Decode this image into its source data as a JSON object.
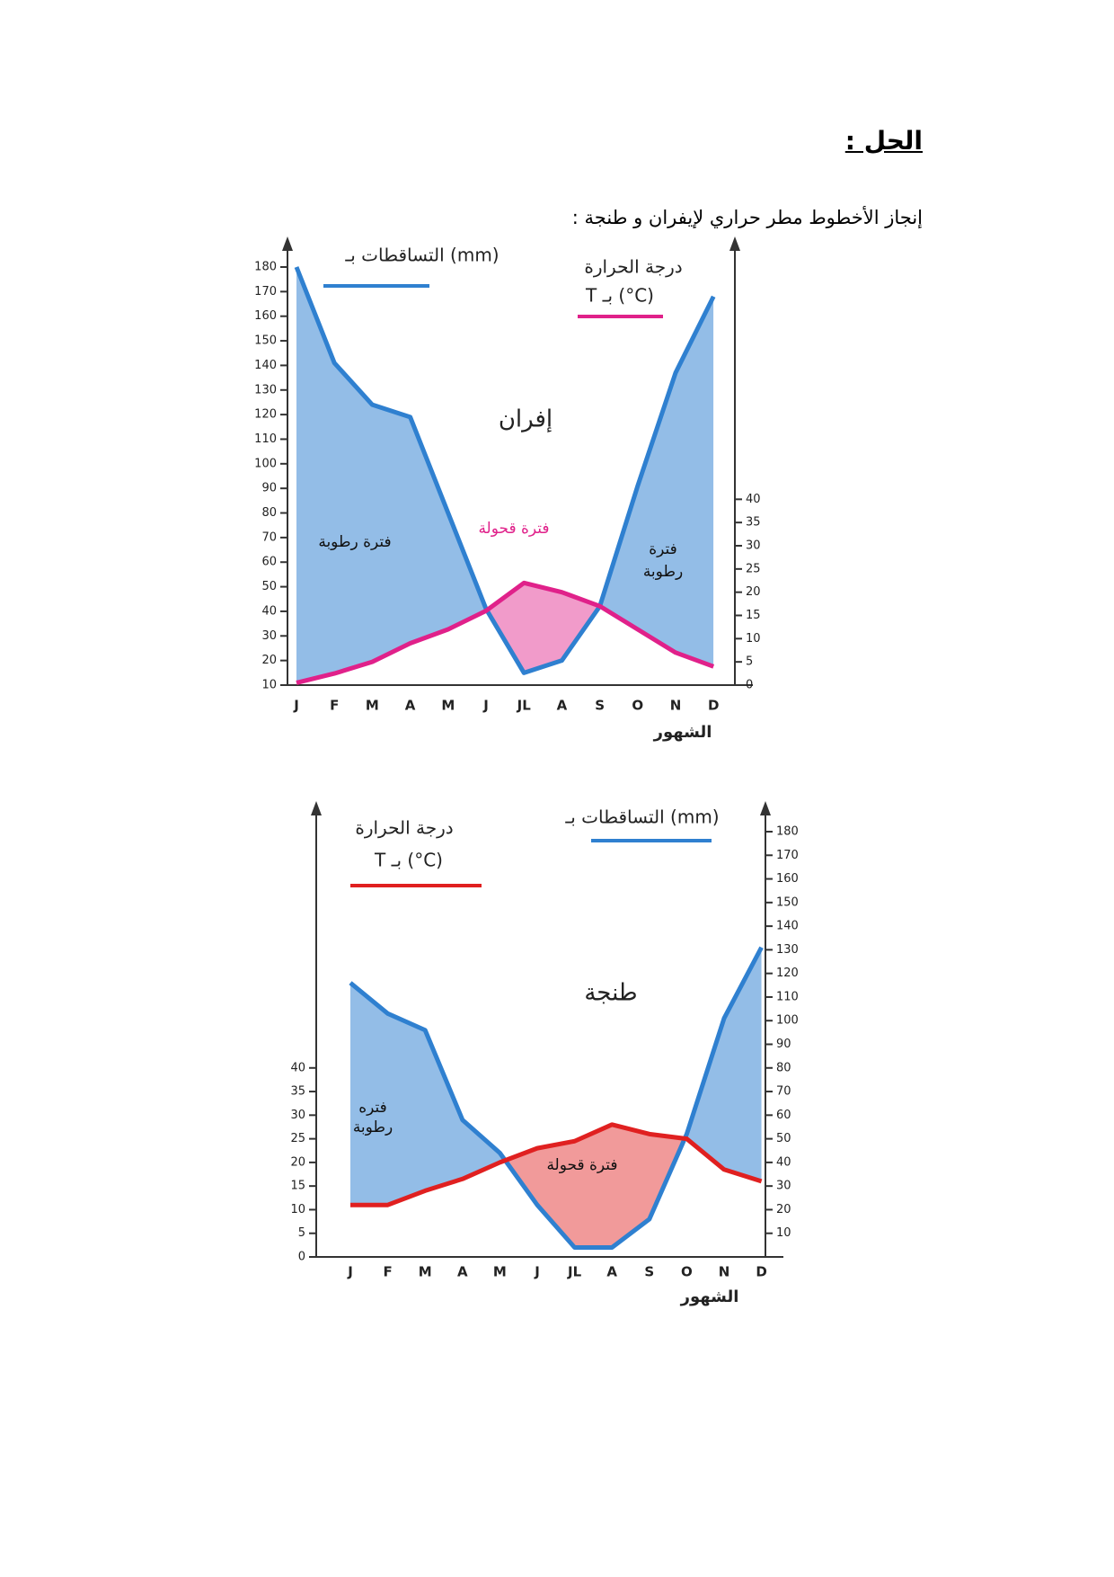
{
  "header": {
    "title": "الحل :",
    "subtitle": "إنجاز الأخطوط مطر حراري لإيفران و طنجة :"
  },
  "chart_data": [
    {
      "type": "ombrothermic",
      "station": "إفران",
      "precipitation_label": "التساقطات بـ (mm)",
      "temperature_label": [
        "درجة الحرارة",
        "T بـ (°C)"
      ],
      "xlabel": "الشهور",
      "annotations": [
        "فترة رطوبة",
        "فترة قحولة",
        "فترة",
        "رطوبة"
      ],
      "categories": [
        "J",
        "F",
        "M",
        "A",
        "M",
        "J",
        "JL",
        "A",
        "S",
        "O",
        "N",
        "D"
      ],
      "series": [
        {
          "color": "#2f80d0",
          "axis": "y",
          "values": [
            180,
            141,
            124,
            119,
            80,
            41,
            15,
            20,
            42,
            91,
            137,
            168
          ]
        },
        {
          "color": "#e0218a",
          "axis": "y2",
          "values": [
            0.5,
            2.5,
            5,
            9,
            12,
            16,
            22,
            20,
            17,
            12,
            7,
            4
          ]
        }
      ],
      "ylim": [
        10,
        180
      ],
      "yticks": [
        10,
        20,
        30,
        40,
        50,
        60,
        70,
        80,
        90,
        100,
        110,
        120,
        130,
        140,
        150,
        160,
        170,
        180
      ],
      "y2lim": [
        0,
        90
      ],
      "y2ticks": [
        0,
        5,
        10,
        15,
        20,
        25,
        30,
        35,
        40
      ]
    },
    {
      "type": "ombrothermic",
      "station": "طنجة",
      "precipitation_label": "التساقطات بـ (mm)",
      "temperature_label": [
        "درجة الحرارة",
        "T بـ (°C)"
      ],
      "xlabel": "الشهور",
      "annotations": [
        "فتره",
        "رطوبة",
        "فترة قحولة"
      ],
      "categories": [
        "J",
        "F",
        "M",
        "A",
        "M",
        "J",
        "JL",
        "A",
        "S",
        "O",
        "N",
        "D"
      ],
      "series": [
        {
          "color": "#2f80d0",
          "axis": "y2",
          "values": [
            116,
            103,
            96,
            58,
            44,
            22,
            4,
            4,
            16,
            52,
            101,
            131
          ]
        },
        {
          "color": "#e02020",
          "axis": "y",
          "values": [
            11,
            11,
            14,
            16.5,
            20,
            23,
            24.5,
            28,
            26,
            25,
            18.5,
            16
          ]
        }
      ],
      "ylim": [
        0,
        90
      ],
      "yticks": [
        0,
        5,
        10,
        15,
        20,
        25,
        30,
        35,
        40
      ],
      "y2lim": [
        0,
        180
      ],
      "y2ticks": [
        10,
        20,
        30,
        40,
        50,
        60,
        70,
        80,
        90,
        100,
        110,
        120,
        130,
        140,
        150,
        160,
        170,
        180
      ]
    }
  ]
}
